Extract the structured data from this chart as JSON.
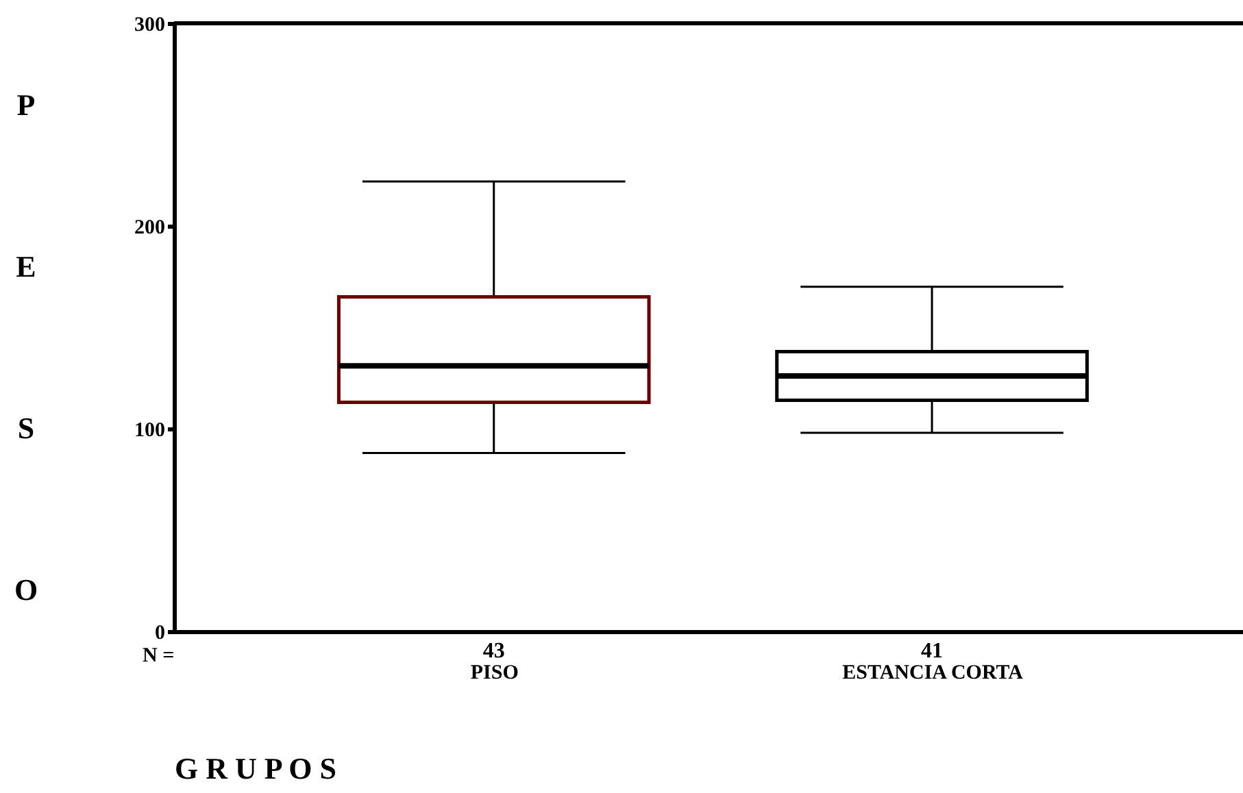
{
  "chart_data": {
    "type": "box",
    "categories": [
      "PISO",
      "ESTANCIA CORTA"
    ],
    "boxes": [
      {
        "low": 88,
        "q1": 113,
        "median": 131,
        "q3": 165,
        "high": 222
      },
      {
        "low": 98,
        "q1": 114,
        "median": 126,
        "q3": 138,
        "high": 170
      }
    ],
    "colors": [
      "#6b0000",
      "#000000"
    ],
    "xlabel": "G R U P O S",
    "ylabel": "P E S O",
    "ylim": [
      0,
      300
    ],
    "yticks": [
      0,
      100,
      200,
      300
    ],
    "grid": false,
    "annotations": [
      "N =",
      "43",
      "41"
    ]
  }
}
